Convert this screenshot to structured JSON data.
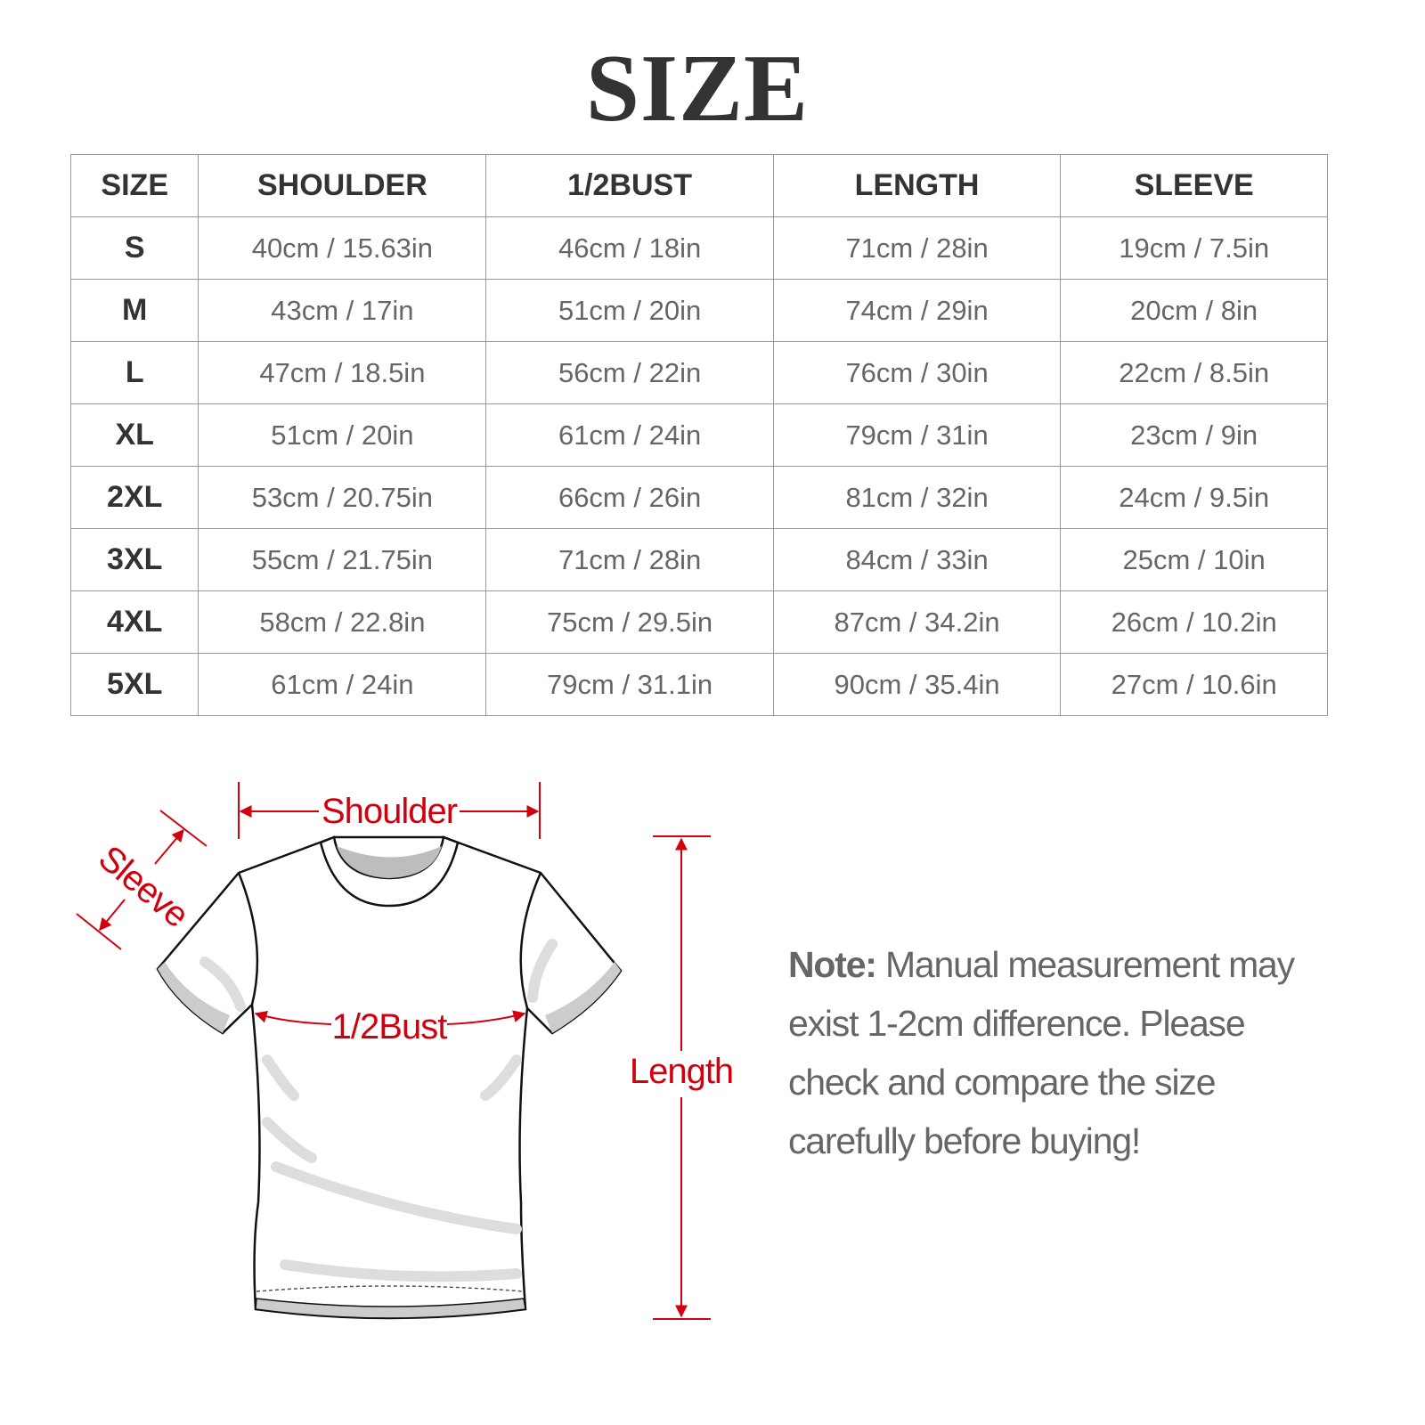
{
  "title": "SIZE",
  "table": {
    "headers": [
      "SIZE",
      "SHOULDER",
      "1/2BUST",
      "LENGTH",
      "SLEEVE"
    ],
    "rows": [
      [
        "S",
        "40cm / 15.63in",
        "46cm / 18in",
        "71cm / 28in",
        "19cm / 7.5in"
      ],
      [
        "M",
        "43cm / 17in",
        "51cm / 20in",
        "74cm / 29in",
        "20cm / 8in"
      ],
      [
        "L",
        "47cm / 18.5in",
        "56cm / 22in",
        "76cm / 30in",
        "22cm / 8.5in"
      ],
      [
        "XL",
        "51cm / 20in",
        "61cm / 24in",
        "79cm / 31in",
        "23cm / 9in"
      ],
      [
        "2XL",
        "53cm / 20.75in",
        "66cm / 26in",
        "81cm / 32in",
        "24cm / 9.5in"
      ],
      [
        "3XL",
        "55cm / 21.75in",
        "71cm / 28in",
        "84cm / 33in",
        "25cm / 10in"
      ],
      [
        "4XL",
        "58cm / 22.8in",
        "75cm / 29.5in",
        "87cm / 34.2in",
        "26cm / 10.2in"
      ],
      [
        "5XL",
        "61cm / 24in",
        "79cm / 31.1in",
        "90cm / 35.4in",
        "27cm / 10.6in"
      ]
    ]
  },
  "diagram": {
    "shoulder": "Shoulder",
    "sleeve": "Sleeve",
    "bust": "1/2Bust",
    "length": "Length",
    "accent_color": "#d2000f"
  },
  "note": {
    "label": "Note:",
    "text": " Manual measurement may exist 1-2cm difference. Please check and compare the size carefully before buying!"
  }
}
